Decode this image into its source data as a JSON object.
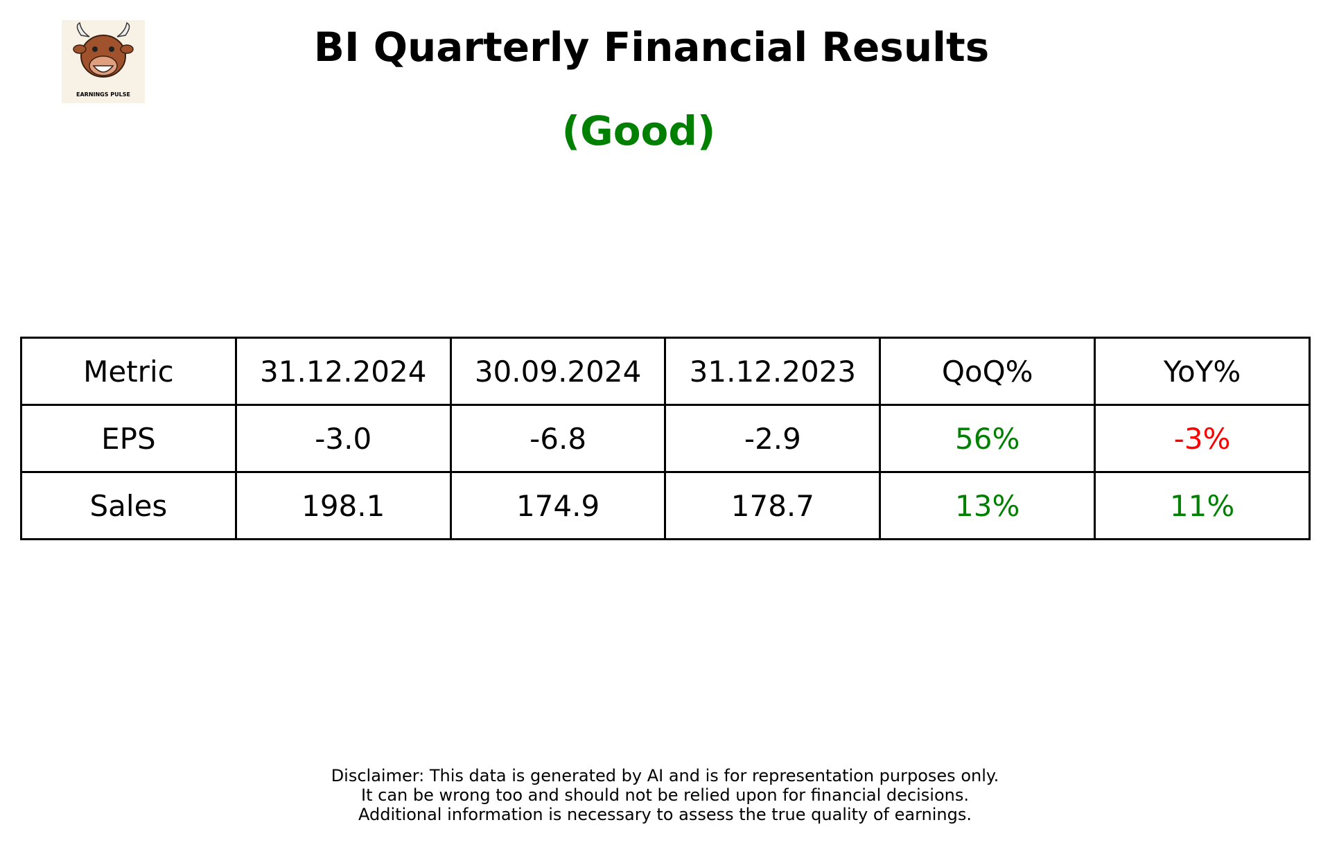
{
  "header": {
    "title": "BI Quarterly Financial Results",
    "rating": "(Good)",
    "logo_caption": "EARNINGS PULSE"
  },
  "table": {
    "columns": [
      "Metric",
      "31.12.2024",
      "30.09.2024",
      "31.12.2023",
      "QoQ%",
      "YoY%"
    ],
    "rows": [
      [
        "EPS",
        "-3.0",
        "-6.8",
        "-2.9",
        "56%",
        "-3%"
      ],
      [
        "Sales",
        "198.1",
        "174.9",
        "178.7",
        "13%",
        "11%"
      ]
    ]
  },
  "disclaimer": [
    "Disclaimer: This data is generated by AI and is for representation purposes only.",
    "It can be wrong too and should not be relied upon for financial decisions.",
    "Additional information is necessary to assess the true quality of earnings."
  ]
}
